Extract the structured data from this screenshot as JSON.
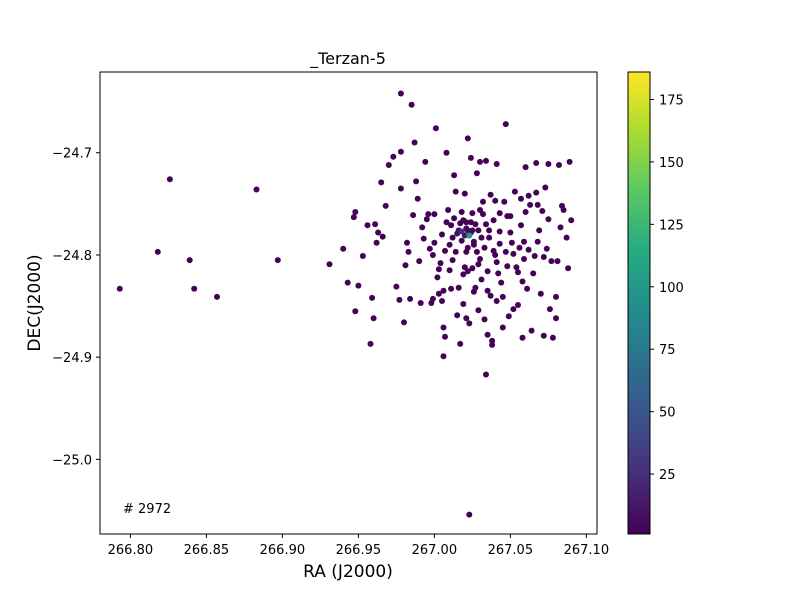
{
  "chart_data": {
    "type": "scatter",
    "title": "_Terzan-5",
    "xlabel": "RA (J2000)",
    "ylabel": "DEC(J2000)",
    "xlim": [
      266.78,
      267.107
    ],
    "ylim": [
      -25.073,
      -24.621
    ],
    "x_ticks": [
      266.8,
      266.85,
      266.9,
      266.95,
      267.0,
      267.05,
      267.1
    ],
    "x_tick_labels": [
      "266.80",
      "266.85",
      "266.90",
      "266.95",
      "267.00",
      "267.05",
      "267.10"
    ],
    "y_ticks": [
      -24.7,
      -24.8,
      -24.9,
      -25.0
    ],
    "y_tick_labels": [
      "−24.7",
      "−24.8",
      "−24.9",
      "−25.0"
    ],
    "annotation": "# 2972",
    "grid": false,
    "colormap": "viridis",
    "colorbar": {
      "range": [
        1,
        186
      ],
      "ticks": [
        25,
        50,
        75,
        100,
        125,
        150,
        175
      ],
      "tick_labels": [
        "25",
        "50",
        "75",
        "100",
        "125",
        "150",
        "175"
      ]
    },
    "points": [
      [
        266.793,
        -24.833,
        2
      ],
      [
        266.818,
        -24.797,
        2
      ],
      [
        266.826,
        -24.726,
        2
      ],
      [
        266.839,
        -24.805,
        2
      ],
      [
        266.842,
        -24.833,
        2
      ],
      [
        266.857,
        -24.841,
        2
      ],
      [
        266.883,
        -24.736,
        2
      ],
      [
        266.897,
        -24.805,
        2
      ],
      [
        266.931,
        -24.809,
        2
      ],
      [
        266.94,
        -24.794,
        2
      ],
      [
        266.943,
        -24.827,
        2
      ],
      [
        266.947,
        -24.763,
        2
      ],
      [
        266.948,
        -24.758,
        2
      ],
      [
        266.948,
        -24.855,
        2
      ],
      [
        266.95,
        -24.83,
        2
      ],
      [
        266.953,
        -24.801,
        2
      ],
      [
        266.956,
        -24.771,
        2
      ],
      [
        266.958,
        -24.887,
        2
      ],
      [
        266.959,
        -24.842,
        2
      ],
      [
        266.96,
        -24.862,
        2
      ],
      [
        266.961,
        -24.77,
        2
      ],
      [
        266.962,
        -24.788,
        2
      ],
      [
        266.963,
        -24.778,
        2
      ],
      [
        266.965,
        -24.729,
        2
      ],
      [
        266.966,
        -24.782,
        2
      ],
      [
        266.968,
        -24.752,
        2
      ],
      [
        266.97,
        -24.712,
        2
      ],
      [
        266.973,
        -24.704,
        2
      ],
      [
        266.975,
        -24.831,
        2
      ],
      [
        266.977,
        -24.844,
        2
      ],
      [
        266.978,
        -24.642,
        2
      ],
      [
        266.978,
        -24.699,
        2
      ],
      [
        266.978,
        -24.735,
        2
      ],
      [
        266.98,
        -24.866,
        2
      ],
      [
        266.981,
        -24.81,
        2
      ],
      [
        266.982,
        -24.788,
        2
      ],
      [
        266.983,
        -24.797,
        2
      ],
      [
        266.984,
        -24.843,
        2
      ],
      [
        266.985,
        -24.653,
        2
      ],
      [
        266.986,
        -24.761,
        2
      ],
      [
        266.987,
        -24.69,
        2
      ],
      [
        266.988,
        -24.728,
        2
      ],
      [
        266.989,
        -24.745,
        2
      ],
      [
        266.99,
        -24.806,
        2
      ],
      [
        266.991,
        -24.847,
        2
      ],
      [
        266.993,
        -24.784,
        2
      ],
      [
        266.994,
        -24.709,
        2
      ],
      [
        266.995,
        -24.765,
        2
      ],
      [
        266.996,
        -24.76,
        2
      ],
      [
        266.997,
        -24.794,
        2
      ],
      [
        266.998,
        -24.847,
        2
      ],
      [
        266.999,
        -24.843,
        2
      ],
      [
        266.999,
        -24.8,
        2
      ],
      [
        267.0,
        -24.788,
        2
      ],
      [
        267.001,
        -24.676,
        2
      ],
      [
        267.002,
        -24.822,
        2
      ],
      [
        267.003,
        -24.838,
        2
      ],
      [
        267.004,
        -24.808,
        2
      ],
      [
        267.005,
        -24.78,
        2
      ],
      [
        267.005,
        -24.845,
        2
      ],
      [
        267.006,
        -24.899,
        2
      ],
      [
        267.006,
        -24.871,
        2
      ],
      [
        267.007,
        -24.88,
        2
      ],
      [
        267.007,
        -24.796,
        2
      ],
      [
        267.008,
        -24.768,
        2
      ],
      [
        267.008,
        -24.7,
        2
      ],
      [
        267.009,
        -24.756,
        2
      ],
      [
        267.01,
        -24.79,
        2
      ],
      [
        267.01,
        -24.815,
        2
      ],
      [
        267.011,
        -24.771,
        2
      ],
      [
        267.012,
        -24.783,
        2
      ],
      [
        267.012,
        -24.805,
        2
      ],
      [
        267.013,
        -24.764,
        2
      ],
      [
        267.013,
        -24.722,
        2
      ],
      [
        267.014,
        -24.738,
        2
      ],
      [
        267.014,
        -24.797,
        2
      ],
      [
        267.015,
        -24.779,
        8
      ],
      [
        267.015,
        -24.859,
        2
      ],
      [
        267.016,
        -24.776,
        6
      ],
      [
        267.016,
        -24.832,
        2
      ],
      [
        267.017,
        -24.887,
        2
      ],
      [
        267.017,
        -24.769,
        3
      ],
      [
        267.018,
        -24.786,
        4
      ],
      [
        267.018,
        -24.777,
        25
      ],
      [
        267.018,
        -24.758,
        2
      ],
      [
        267.019,
        -24.766,
        2
      ],
      [
        267.019,
        -24.848,
        2
      ],
      [
        267.019,
        -24.819,
        2
      ],
      [
        267.02,
        -24.781,
        12
      ],
      [
        267.02,
        -24.74,
        2
      ],
      [
        267.02,
        -24.812,
        2
      ],
      [
        267.021,
        -24.797,
        2
      ],
      [
        267.021,
        -24.774,
        6
      ],
      [
        267.021,
        -24.862,
        2
      ],
      [
        267.021,
        -24.768,
        2
      ],
      [
        267.022,
        -24.686,
        2
      ],
      [
        267.022,
        -24.816,
        2
      ],
      [
        267.022,
        -24.793,
        2
      ],
      [
        267.022,
        -24.776,
        5
      ],
      [
        267.023,
        -24.867,
        2
      ],
      [
        267.023,
        -24.781,
        98
      ],
      [
        267.023,
        -25.054,
        2
      ],
      [
        267.024,
        -24.705,
        2
      ],
      [
        267.024,
        -24.768,
        2
      ],
      [
        267.024,
        -24.778,
        4
      ],
      [
        267.025,
        -24.759,
        2
      ],
      [
        267.025,
        -24.776,
        3
      ],
      [
        267.025,
        -24.813,
        2
      ],
      [
        267.026,
        -24.79,
        2
      ],
      [
        267.026,
        -24.836,
        2
      ],
      [
        267.026,
        -24.787,
        2
      ],
      [
        267.027,
        -24.832,
        2
      ],
      [
        267.027,
        -24.77,
        2
      ],
      [
        267.028,
        -24.72,
        2
      ],
      [
        267.028,
        -24.797,
        2
      ],
      [
        267.029,
        -24.776,
        3
      ],
      [
        267.029,
        -24.809,
        2
      ],
      [
        267.029,
        -24.854,
        2
      ],
      [
        267.03,
        -24.804,
        2
      ],
      [
        267.03,
        -24.709,
        2
      ],
      [
        267.03,
        -24.756,
        2
      ],
      [
        267.031,
        -24.824,
        2
      ],
      [
        267.031,
        -24.783,
        2
      ],
      [
        267.032,
        -24.748,
        2
      ],
      [
        267.032,
        -24.76,
        2
      ],
      [
        267.033,
        -24.863,
        2
      ],
      [
        267.033,
        -24.793,
        2
      ],
      [
        267.034,
        -24.708,
        2
      ],
      [
        267.034,
        -24.917,
        2
      ],
      [
        267.035,
        -24.835,
        2
      ],
      [
        267.035,
        -24.816,
        2
      ],
      [
        267.035,
        -24.878,
        2
      ],
      [
        267.036,
        -24.776,
        2
      ],
      [
        267.036,
        -24.783,
        2
      ],
      [
        267.037,
        -24.84,
        2
      ],
      [
        267.037,
        -24.741,
        2
      ],
      [
        267.038,
        -24.884,
        2
      ],
      [
        267.038,
        -24.888,
        2
      ],
      [
        267.039,
        -24.796,
        2
      ],
      [
        267.039,
        -24.766,
        2
      ],
      [
        267.04,
        -24.8,
        2
      ],
      [
        267.04,
        -24.747,
        2
      ],
      [
        267.041,
        -24.711,
        2
      ],
      [
        267.041,
        -24.807,
        2
      ],
      [
        267.042,
        -24.818,
        2
      ],
      [
        267.043,
        -24.789,
        2
      ],
      [
        267.043,
        -24.777,
        2
      ],
      [
        267.043,
        -24.759,
        2
      ],
      [
        267.044,
        -24.827,
        2
      ],
      [
        267.045,
        -24.841,
        2
      ],
      [
        267.045,
        -24.871,
        2
      ],
      [
        267.046,
        -24.748,
        2
      ],
      [
        267.047,
        -24.797,
        2
      ],
      [
        267.047,
        -24.672,
        2
      ],
      [
        267.048,
        -24.811,
        2
      ],
      [
        267.049,
        -24.86,
        2
      ],
      [
        267.05,
        -24.762,
        2
      ],
      [
        267.05,
        -24.778,
        2
      ],
      [
        267.051,
        -24.788,
        2
      ],
      [
        267.052,
        -24.799,
        2
      ],
      [
        267.052,
        -24.853,
        2
      ],
      [
        267.053,
        -24.738,
        2
      ],
      [
        267.054,
        -24.812,
        2
      ],
      [
        267.055,
        -24.817,
        2
      ],
      [
        267.055,
        -24.849,
        2
      ],
      [
        267.056,
        -24.793,
        2
      ],
      [
        267.057,
        -24.771,
        2
      ],
      [
        267.057,
        -24.745,
        2
      ],
      [
        267.058,
        -24.881,
        2
      ],
      [
        267.058,
        -24.826,
        2
      ],
      [
        267.059,
        -24.804,
        2
      ],
      [
        267.059,
        -24.787,
        2
      ],
      [
        267.06,
        -24.714,
        2
      ],
      [
        267.06,
        -24.758,
        2
      ],
      [
        267.061,
        -24.833,
        2
      ],
      [
        267.062,
        -24.742,
        2
      ],
      [
        267.062,
        -24.795,
        2
      ],
      [
        267.063,
        -24.751,
        2
      ],
      [
        267.064,
        -24.874,
        2
      ],
      [
        267.065,
        -24.818,
        2
      ],
      [
        267.066,
        -24.801,
        2
      ],
      [
        267.067,
        -24.71,
        2
      ],
      [
        267.067,
        -24.739,
        2
      ],
      [
        267.068,
        -24.787,
        2
      ],
      [
        267.069,
        -24.776,
        2
      ],
      [
        267.07,
        -24.838,
        2
      ],
      [
        267.071,
        -24.757,
        2
      ],
      [
        267.072,
        -24.879,
        2
      ],
      [
        267.072,
        -24.802,
        2
      ],
      [
        267.073,
        -24.734,
        2
      ],
      [
        267.074,
        -24.794,
        2
      ],
      [
        267.075,
        -24.765,
        2
      ],
      [
        267.075,
        -24.711,
        2
      ],
      [
        267.076,
        -24.853,
        2
      ],
      [
        267.077,
        -24.806,
        2
      ],
      [
        267.078,
        -24.881,
        2
      ],
      [
        267.08,
        -24.841,
        2
      ],
      [
        267.08,
        -24.862,
        2
      ],
      [
        267.081,
        -24.806,
        2
      ],
      [
        267.082,
        -24.712,
        2
      ],
      [
        267.083,
        -24.773,
        2
      ],
      [
        267.084,
        -24.752,
        2
      ],
      [
        267.085,
        -24.756,
        2
      ],
      [
        267.087,
        -24.783,
        2
      ],
      [
        267.088,
        -24.813,
        2
      ],
      [
        267.089,
        -24.709,
        2
      ],
      [
        267.09,
        -24.766,
        2
      ],
      [
        267.068,
        -24.751,
        2
      ],
      [
        266.992,
        -24.773,
        2
      ],
      [
        267.003,
        -24.814,
        2
      ],
      [
        267.011,
        -24.833,
        2
      ],
      [
        267.041,
        -24.845,
        2
      ],
      [
        267.048,
        -24.762,
        2
      ],
      [
        267.006,
        -24.835,
        2
      ],
      [
        267.0,
        -24.76,
        2
      ],
      [
        267.034,
        -24.77,
        2
      ]
    ]
  }
}
